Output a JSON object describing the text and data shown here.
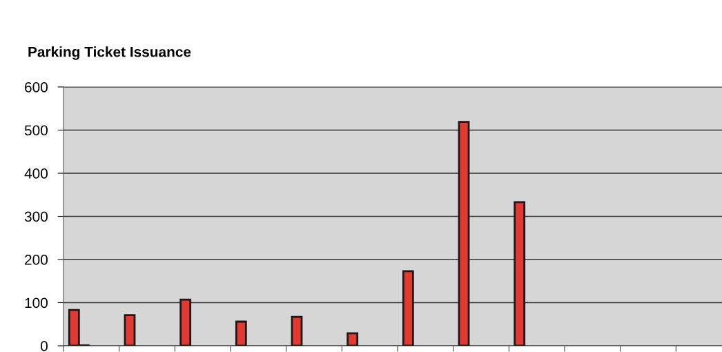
{
  "chart_data": {
    "type": "bar",
    "title": "Parking Ticket Issuance",
    "categories": [
      null,
      null,
      null,
      null,
      null,
      null,
      null,
      null,
      null,
      null,
      null,
      null
    ],
    "series": [
      {
        "color": "#e03a32",
        "values": [
          83,
          71,
          107,
          56,
          67,
          29,
          173,
          519,
          333,
          null,
          null,
          null
        ]
      },
      {
        "color": "#3a2a2a",
        "values": [
          1,
          null,
          null,
          null,
          null,
          null,
          null,
          null,
          null,
          null,
          null,
          null
        ]
      }
    ],
    "ylim": [
      0,
      600
    ],
    "yticks": [
      0,
      100,
      200,
      300,
      400,
      500,
      600
    ],
    "grid": "y",
    "legend": false
  }
}
